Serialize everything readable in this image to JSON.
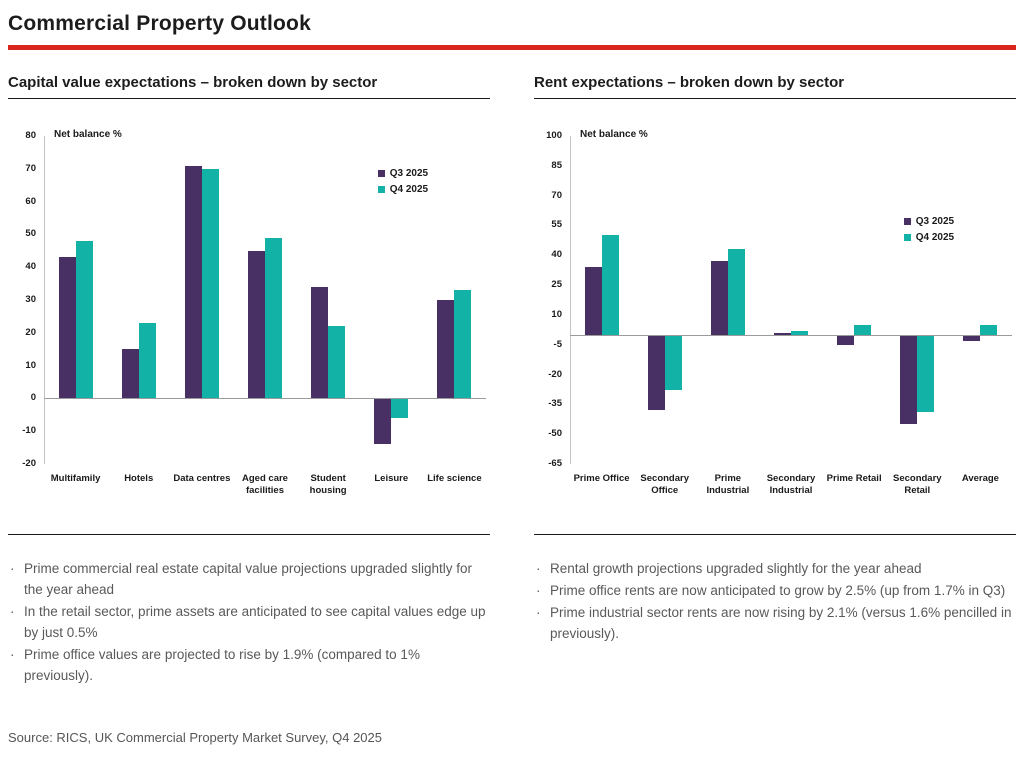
{
  "title": "Commercial Property Outlook",
  "source": "Source: RICS, UK Commercial Property Market Survey, Q4 2025",
  "colors": {
    "q3": "#483065",
    "q4": "#12b2a7",
    "rule": "#d9261d"
  },
  "sections": [
    {
      "heading": "Capital value expectations – broken down by sector",
      "bullets": [
        "Prime commercial real estate capital value projections upgraded slightly for the year ahead",
        "In the retail sector, prime assets are anticipated to see capital values edge up by just 0.5%",
        "Prime office values are projected to rise by 1.9% (compared to 1% previously)."
      ]
    },
    {
      "heading": "Rent expectations – broken down by sector",
      "bullets": [
        "Rental growth projections upgraded slightly for the year ahead",
        "Prime office rents are now anticipated to grow by 2.5% (up from 1.7% in Q3)",
        "Prime industrial sector rents are now rising by 2.1% (versus 1.6% pencilled in previously)."
      ]
    }
  ],
  "chart_data": [
    {
      "type": "bar",
      "title": "Capital value expectations – broken down by sector",
      "ylabel": "Net balance %",
      "xlabel": "",
      "categories": [
        "Multifamily",
        "Hotels",
        "Data centres",
        "Aged care facilities",
        "Student housing",
        "Leisure",
        "Life science"
      ],
      "series": [
        {
          "name": "Q3 2025",
          "color": "#483065",
          "values": [
            43,
            15,
            71,
            45,
            34,
            -14,
            30
          ]
        },
        {
          "name": "Q4 2025",
          "color": "#12b2a7",
          "values": [
            48,
            23,
            70,
            49,
            22,
            -6,
            33
          ]
        }
      ],
      "ylim": [
        -20,
        80
      ],
      "yticks": [
        80,
        70,
        60,
        50,
        40,
        30,
        20,
        10,
        0,
        -10,
        -20
      ],
      "grid": false,
      "legend_position": "upper right"
    },
    {
      "type": "bar",
      "title": "Rent expectations – broken down by sector",
      "ylabel": "Net balance %",
      "xlabel": "",
      "categories": [
        "Prime Office",
        "Secondary Office",
        "Prime Industrial",
        "Secondary Industrial",
        "Prime Retail",
        "Secondary Retail",
        "Average"
      ],
      "series": [
        {
          "name": "Q3 2025",
          "color": "#483065",
          "values": [
            34,
            -38,
            37,
            1,
            -5,
            -45,
            -3
          ]
        },
        {
          "name": "Q4 2025",
          "color": "#12b2a7",
          "values": [
            50,
            -28,
            43,
            2,
            5,
            -39,
            5
          ]
        }
      ],
      "ylim": [
        -65,
        100
      ],
      "yticks": [
        100,
        85,
        70,
        55,
        40,
        25,
        10,
        -5,
        -20,
        -35,
        -50,
        -65
      ],
      "grid": false,
      "legend_position": "upper right"
    }
  ]
}
